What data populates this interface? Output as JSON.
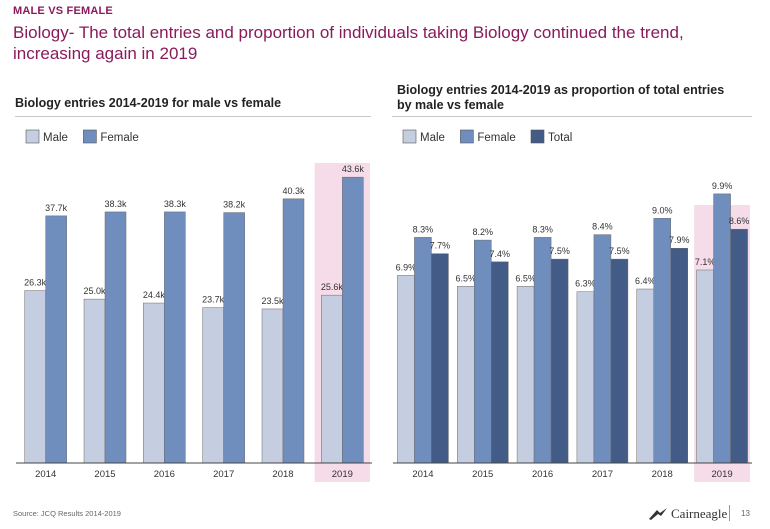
{
  "kicker": "MALE VS FEMALE",
  "headline": "Biology- The total entries and proportion of individuals taking Biology continued the trend, increasing again in 2019",
  "colors": {
    "male": "#c5cee0",
    "female": "#6f8dbd",
    "total": "#435b87",
    "highlight": "#f6dbe8",
    "accent": "#8a1a5c"
  },
  "chart_data": [
    {
      "type": "bar",
      "title": "Biology entries 2014-2019 for male vs female",
      "categories": [
        "2014",
        "2015",
        "2016",
        "2017",
        "2018",
        "2019"
      ],
      "highlight_category": "2019",
      "series": [
        {
          "name": "Male",
          "values": [
            26.3,
            25.0,
            24.4,
            23.7,
            23.5,
            25.6
          ],
          "labels": [
            "26.3k",
            "25.0k",
            "24.4k",
            "23.7k",
            "23.5k",
            "25.6k"
          ]
        },
        {
          "name": "Female",
          "values": [
            37.7,
            38.3,
            38.3,
            38.2,
            40.3,
            43.6
          ],
          "labels": [
            "37.7k",
            "38.3k",
            "38.3k",
            "38.2k",
            "40.3k",
            "43.6k"
          ]
        }
      ],
      "ylim": [
        0,
        45
      ],
      "legend": "top-left"
    },
    {
      "type": "bar",
      "title": "Biology entries 2014-2019 as proportion of total entries by male vs female",
      "categories": [
        "2014",
        "2015",
        "2016",
        "2017",
        "2018",
        "2019"
      ],
      "highlight_category": "2019",
      "series": [
        {
          "name": "Male",
          "values": [
            6.9,
            6.5,
            6.5,
            6.3,
            6.4,
            7.1
          ],
          "labels": [
            "6.9%",
            "6.5%",
            "6.5%",
            "6.3%",
            "6.4%",
            "7.1%"
          ]
        },
        {
          "name": "Female",
          "values": [
            8.3,
            8.2,
            8.3,
            8.4,
            9.0,
            9.9
          ],
          "labels": [
            "8.3%",
            "8.2%",
            "8.3%",
            "8.4%",
            "9.0%",
            "9.9%"
          ]
        },
        {
          "name": "Total",
          "values": [
            7.7,
            7.4,
            7.5,
            7.5,
            7.9,
            8.6
          ],
          "labels": [
            "7.7%",
            "7.4%",
            "7.5%",
            "7.5%",
            "7.9%",
            "8.6%"
          ]
        }
      ],
      "ylim": [
        0,
        10.3
      ],
      "legend": "top-left"
    }
  ],
  "footer": {
    "source": "Source: JCQ Results 2014-2019",
    "brand": "Cairneagle",
    "page_number": "13"
  }
}
